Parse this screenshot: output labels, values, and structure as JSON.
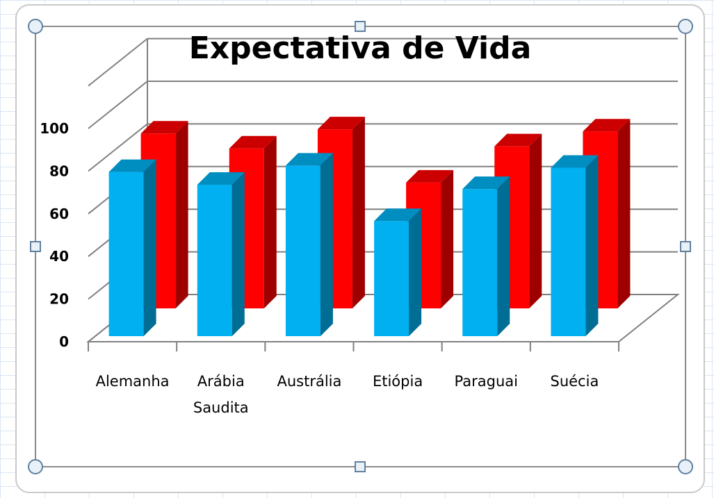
{
  "chart_data": {
    "type": "bar",
    "title": "Expectativa de Vida",
    "categories": [
      "Alemanha",
      "Arábia Saudita",
      "Austrália",
      "Etiópia",
      "Paraguai",
      "Suécia"
    ],
    "category_lines": [
      [
        "Alemanha"
      ],
      [
        "Arábia",
        "Saudita"
      ],
      [
        "Austrália"
      ],
      [
        "Etiópia"
      ],
      [
        "Paraguai"
      ],
      [
        "Suécia"
      ]
    ],
    "series": [
      {
        "values": [
          77,
          71,
          80,
          54,
          69,
          79
        ],
        "color": "#00b0f0"
      },
      {
        "values": [
          82,
          75,
          84,
          59,
          76,
          83
        ],
        "color": "#ff0000"
      }
    ],
    "ylim": [
      0,
      100
    ],
    "yticks": [
      0,
      20,
      40,
      60,
      80,
      100
    ],
    "grid": true,
    "style": "3d-clustered-column"
  }
}
